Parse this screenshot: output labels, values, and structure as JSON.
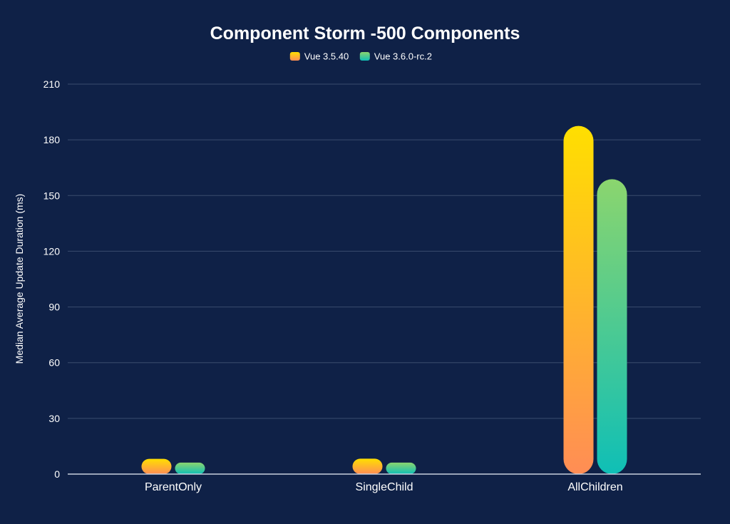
{
  "chart_data": {
    "type": "bar",
    "title": "Component Storm -500 Components",
    "xlabel": "",
    "ylabel": "Median Average Update Duration (ms)",
    "categories": [
      "ParentOnly",
      "SingleChild",
      "AllChildren"
    ],
    "series": [
      {
        "name": "Vue 3.5.40",
        "values": [
          8.2,
          8.3,
          187.5
        ],
        "colors": {
          "top": "#ffdf00",
          "bottom": "#ff8d55"
        }
      },
      {
        "name": "Vue 3.6.0-rc.2",
        "values": [
          6.2,
          6.2,
          158.8
        ],
        "colors": {
          "top": "#8bd56e",
          "bottom": "#0fbfb6"
        }
      }
    ],
    "ylim": [
      0,
      210
    ],
    "yticks": [
      0,
      30,
      60,
      90,
      120,
      150,
      180,
      210
    ],
    "grid": true,
    "legend": "top-center",
    "colors": {
      "background": "#0f2147",
      "grid": "#3a4c6e",
      "axis": "#c9d1de",
      "text": "#ffffff"
    }
  }
}
